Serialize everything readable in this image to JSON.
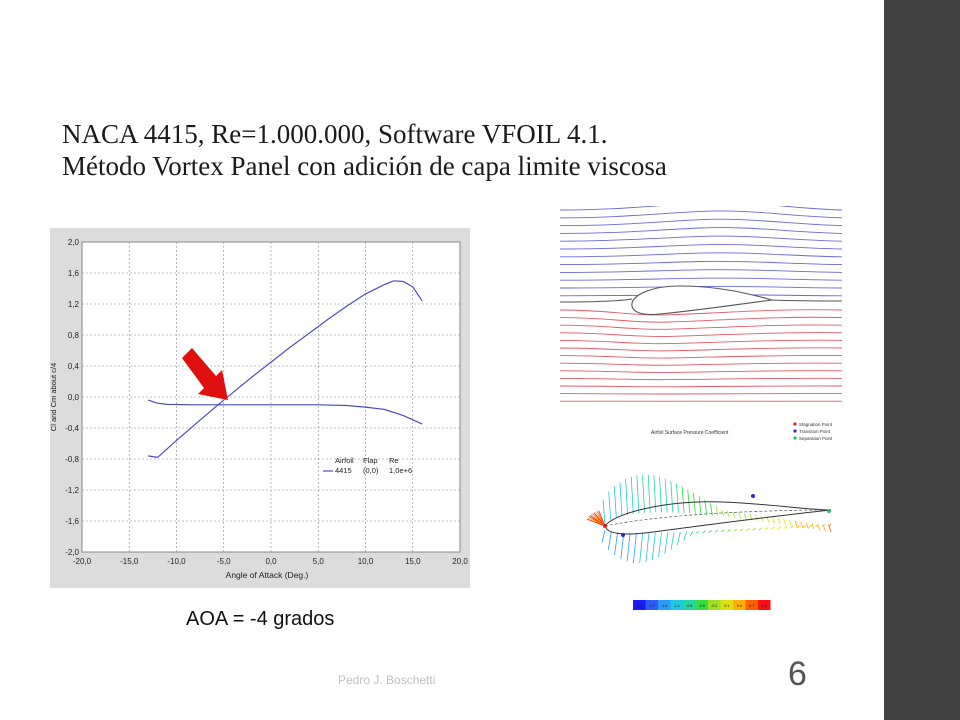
{
  "slide": {
    "title_line1": "NACA 4415, Re=1.000.000, Software VFOIL 4.1.",
    "title_line2": "Método Vortex Panel con adición de capa limite viscosa",
    "aoa_label": "AOA = -4 grados",
    "author": "Pedro J. Boschetti",
    "page_number": "6",
    "sidebar_color": "#404040"
  },
  "chart_data": {
    "type": "line",
    "xlabel": "Angle of Attack (Deg.)",
    "ylabel": "Cl and Cm about c/4",
    "xlim": [
      -20,
      20
    ],
    "ylim": [
      -2,
      2
    ],
    "xticks": [
      "-20,0",
      "-15,0",
      "-10,0",
      "-5,0",
      "0,0",
      "5,0",
      "10,0",
      "15,0",
      "20,0"
    ],
    "yticks": [
      "2,0",
      "1,6",
      "1,2",
      "0,8",
      "0,4",
      "0,0",
      "-0,4",
      "-0,8",
      "-1,2",
      "-1,6",
      "-2,0"
    ],
    "grid": true,
    "legend": {
      "headers": [
        "Airfoil",
        "Flap",
        "Re"
      ],
      "row": [
        "4415",
        "(0,0)",
        "1,0e+6"
      ]
    },
    "series": [
      {
        "key": "cl",
        "color": "#4a50b8",
        "points": [
          [
            -13,
            -0.76
          ],
          [
            -12,
            -0.78
          ],
          [
            -10,
            -0.56
          ],
          [
            -8,
            -0.35
          ],
          [
            -6,
            -0.14
          ],
          [
            -4,
            0.06
          ],
          [
            -2,
            0.26
          ],
          [
            0,
            0.45
          ],
          [
            2,
            0.64
          ],
          [
            4,
            0.82
          ],
          [
            6,
            1.0
          ],
          [
            8,
            1.17
          ],
          [
            10,
            1.33
          ],
          [
            12,
            1.45
          ],
          [
            13,
            1.5
          ],
          [
            14,
            1.49
          ],
          [
            15,
            1.42
          ],
          [
            16,
            1.24
          ]
        ]
      },
      {
        "key": "cm",
        "color": "#4a50b8",
        "points": [
          [
            -13,
            -0.04
          ],
          [
            -12,
            -0.08
          ],
          [
            -11,
            -0.095
          ],
          [
            -8,
            -0.1
          ],
          [
            -5,
            -0.1
          ],
          [
            0,
            -0.1
          ],
          [
            5,
            -0.1
          ],
          [
            8,
            -0.11
          ],
          [
            10,
            -0.13
          ],
          [
            12,
            -0.16
          ],
          [
            14,
            -0.24
          ],
          [
            16,
            -0.35
          ]
        ]
      }
    ]
  },
  "flow_image": {
    "upper_color": "#6a6adc",
    "lower_color": "#e05a6a",
    "airfoil_color": "#555555"
  },
  "cp_image": {
    "title": "Airfoil Surface Pressure Coefficient",
    "legend": [
      "Stagnation Point",
      "Transition Point",
      "Separation Point"
    ],
    "legend_colors": [
      "#e02020",
      "#2030c0",
      "#20c060"
    ],
    "scale_labels": [
      "-2.0",
      "-1.7",
      "-1.4",
      "-1.1",
      "-0.8",
      "-0.5",
      "-0.2",
      "0.1",
      "0.4",
      "0.7",
      "1.0"
    ],
    "scale_colors": [
      "#1a1aff",
      "#2a5cff",
      "#2a9cff",
      "#20c8e0",
      "#20d8a0",
      "#30e040",
      "#a0e020",
      "#e0e010",
      "#ffb000",
      "#ff6000",
      "#ff1010"
    ]
  },
  "arrow": {
    "color": "#e01010"
  }
}
